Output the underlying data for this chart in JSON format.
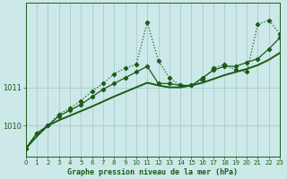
{
  "title": "Graphe pression niveau de la mer (hPa)",
  "bg_color": "#cce8e8",
  "grid_color": "#aacccc",
  "line_color": "#1a5c1a",
  "x_min": 0,
  "x_max": 23,
  "y_min": 1009.2,
  "y_max": 1013.2,
  "yticks": [
    1010,
    1011
  ],
  "xticks": [
    0,
    1,
    2,
    3,
    4,
    5,
    6,
    7,
    8,
    9,
    10,
    11,
    12,
    13,
    14,
    15,
    16,
    17,
    18,
    19,
    20,
    21,
    22,
    23
  ],
  "series1": [
    1009.4,
    1009.8,
    1010.0,
    1010.3,
    1010.45,
    1010.65,
    1010.9,
    1011.1,
    1011.35,
    1011.5,
    1011.6,
    1012.7,
    1011.7,
    1011.25,
    1011.05,
    1011.05,
    1011.2,
    1011.5,
    1011.6,
    1011.45,
    1011.4,
    1012.65,
    1012.75,
    1012.4
  ],
  "series2": [
    1009.4,
    1009.8,
    1010.0,
    1010.25,
    1010.4,
    1010.55,
    1010.75,
    1010.95,
    1011.1,
    1011.25,
    1011.4,
    1011.55,
    1011.1,
    1011.1,
    1011.05,
    1011.05,
    1011.25,
    1011.45,
    1011.55,
    1011.55,
    1011.65,
    1011.75,
    1012.0,
    1012.3
  ],
  "series3": [
    1009.4,
    1009.72,
    1010.0,
    1010.14,
    1010.26,
    1010.38,
    1010.5,
    1010.63,
    1010.76,
    1010.88,
    1011.0,
    1011.12,
    1011.05,
    1011.0,
    1011.0,
    1011.05,
    1011.12,
    1011.22,
    1011.32,
    1011.4,
    1011.48,
    1011.58,
    1011.72,
    1011.9
  ]
}
